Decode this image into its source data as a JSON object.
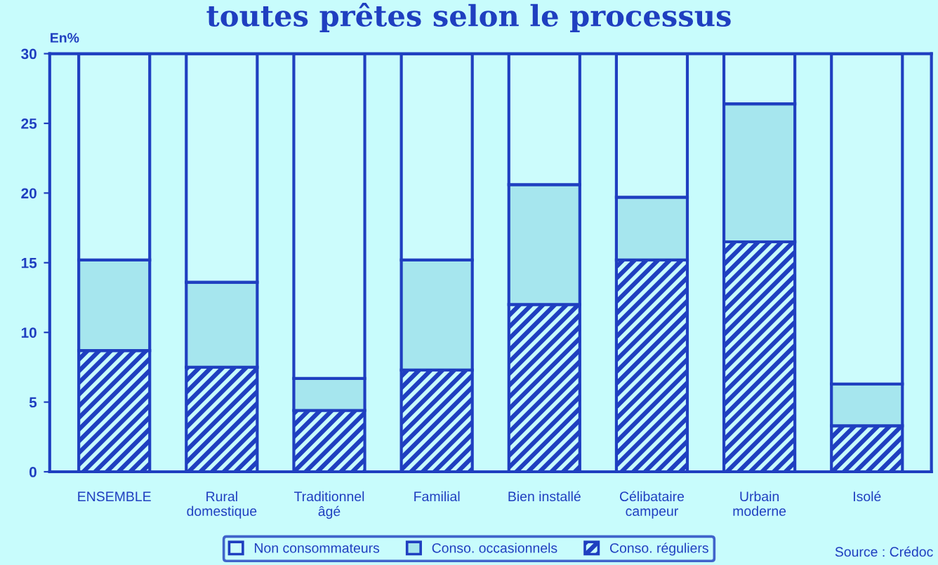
{
  "chart_data": {
    "type": "bar",
    "stacked": true,
    "title": "toutes prêtes selon le processus",
    "ylabel": "En%",
    "categories": [
      "ENSEMBLE",
      "Rural\ndomestique",
      "Traditionnel\nâgé",
      "Familial",
      "Bien installé",
      "Célibataire\ncampeur",
      "Urbain\nmoderne",
      "Isolé"
    ],
    "series": [
      {
        "name": "Conso. réguliers",
        "color": "#1f3fc0",
        "values": [
          8.7,
          7.5,
          4.4,
          7.3,
          12.0,
          15.2,
          16.5,
          3.3
        ]
      },
      {
        "name": "Conso. occasionnels",
        "color": "#a6e6ee",
        "values": [
          6.5,
          6.1,
          2.3,
          7.9,
          8.6,
          4.5,
          9.9,
          3.0
        ]
      },
      {
        "name": "Non consommateurs",
        "color": "#ccfcfc",
        "values": [
          14.8,
          16.4,
          23.3,
          14.8,
          9.4,
          10.3,
          3.6,
          23.7
        ]
      }
    ],
    "ylim": [
      0,
      30
    ],
    "yticks": [
      0,
      5,
      10,
      15,
      20,
      25,
      30
    ],
    "grid": false,
    "legend": "bottom",
    "annotations": [
      "Source : Crédoc"
    ]
  }
}
